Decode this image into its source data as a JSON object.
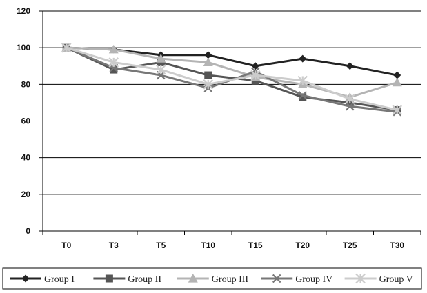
{
  "chart_data": {
    "type": "line",
    "title": "",
    "xlabel": "",
    "ylabel": "",
    "categories": [
      "T0",
      "T3",
      "T5",
      "T10",
      "T15",
      "T20",
      "T25",
      "T30"
    ],
    "ylim": [
      0,
      120
    ],
    "yticks": [
      "0",
      "20",
      "40",
      "60",
      "80",
      "100",
      "120"
    ],
    "grid": true,
    "legend_position": "bottom",
    "series": [
      {
        "name": "Group I",
        "marker": "diamond",
        "color": "#222222",
        "values": [
          100,
          99,
          96,
          96,
          90,
          94,
          90,
          85
        ]
      },
      {
        "name": "Group II",
        "marker": "square",
        "color": "#555555",
        "values": [
          100,
          88,
          92,
          85,
          82,
          73,
          70,
          66
        ]
      },
      {
        "name": "Group III",
        "marker": "triangle",
        "color": "#b4b4b4",
        "values": [
          100,
          99,
          94,
          92,
          84,
          80,
          73,
          81
        ]
      },
      {
        "name": "Group IV",
        "marker": "x",
        "color": "#777777",
        "values": [
          100,
          89,
          85,
          78,
          87,
          74,
          68,
          65
        ]
      },
      {
        "name": "Group V",
        "marker": "star",
        "color": "#cccccc",
        "values": [
          100,
          92,
          88,
          80,
          85,
          82,
          72,
          66
        ]
      }
    ]
  }
}
